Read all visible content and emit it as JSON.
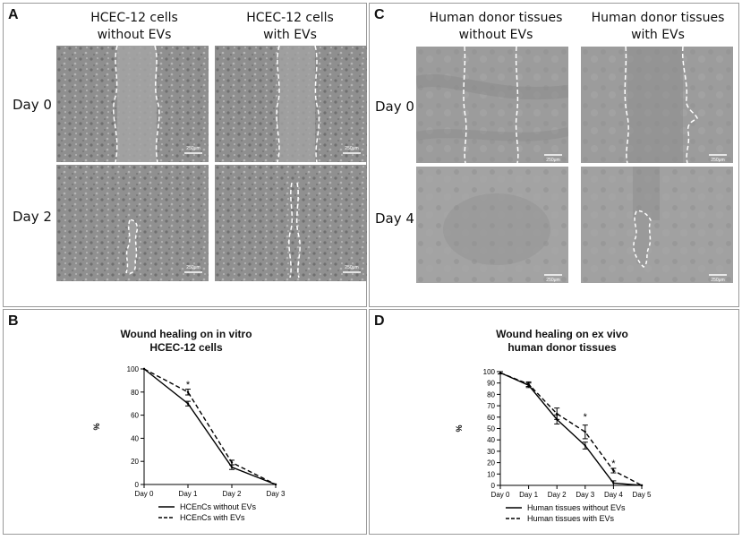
{
  "panels": {
    "A": {
      "label": "A",
      "col1": "HCEC-12 cells",
      "col1b": "without EVs",
      "col2": "HCEC-12 cells",
      "col2b": "with EVs",
      "row1": "Day 0",
      "row2": "Day 2",
      "scalebar": "250μm"
    },
    "C": {
      "label": "C",
      "col1": "Human donor tissues",
      "col1b": "without EVs",
      "col2": "Human donor tissues",
      "col2b": "with EVs",
      "row1": "Day 0",
      "row2": "Day 4",
      "scalebar": "250μm"
    },
    "B": {
      "label": "B"
    },
    "D": {
      "label": "D"
    }
  },
  "colors": {
    "border": "#9a9a9a",
    "line": "#000000",
    "cells_bg": "#8f8f8f",
    "tissue_bg": "#9b9b9b"
  },
  "chart_data": [
    {
      "type": "line",
      "title": "Wound healing on in vitro",
      "title2": "HCEC-12 cells",
      "ylabel": "%",
      "xlabel": "",
      "ylim": [
        0,
        100
      ],
      "yticks": [
        0,
        20,
        40,
        60,
        80,
        100
      ],
      "categories": [
        "Day 0",
        "Day 1",
        "Day 2",
        "Day 3"
      ],
      "series": [
        {
          "name": "HCEnCs without EVs",
          "style": "solid",
          "values": [
            100,
            70,
            15,
            0
          ],
          "errors": [
            0,
            2,
            2,
            0
          ]
        },
        {
          "name": "HCEnCs with EVs",
          "style": "dashed",
          "values": [
            100,
            80,
            19,
            0
          ],
          "errors": [
            0,
            2.5,
            2,
            0
          ]
        }
      ],
      "annotations": [
        {
          "text": "*",
          "category": "Day 1",
          "y": 86
        }
      ]
    },
    {
      "type": "line",
      "title": "Wound healing on ex vivo",
      "title2": "human donor tissues",
      "ylabel": "%",
      "xlabel": "",
      "ylim": [
        0,
        100
      ],
      "yticks": [
        0,
        10,
        20,
        30,
        40,
        50,
        60,
        70,
        80,
        90,
        100
      ],
      "categories": [
        "Day 0",
        "Day 1",
        "Day 2",
        "Day 3",
        "Day 4",
        "Day 5"
      ],
      "series": [
        {
          "name": "Human tissues without EVs",
          "style": "solid",
          "values": [
            99,
            88,
            58,
            35,
            2,
            0
          ],
          "errors": [
            1,
            2,
            4,
            3,
            2,
            0
          ]
        },
        {
          "name": "Human tissues with EVs",
          "style": "dashed",
          "values": [
            99,
            89,
            63,
            47,
            13,
            0
          ],
          "errors": [
            1,
            2,
            5,
            6,
            2,
            0
          ]
        }
      ],
      "annotations": [
        {
          "text": "*",
          "category": "Day 3",
          "y": 60
        },
        {
          "text": "*",
          "category": "Day 4",
          "y": 19
        }
      ]
    }
  ]
}
